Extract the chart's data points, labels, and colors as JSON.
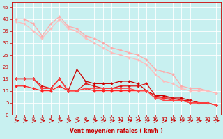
{
  "xlabel": "Vent moyen/en rafales ( km/h )",
  "x": [
    0,
    1,
    2,
    3,
    4,
    5,
    6,
    7,
    8,
    9,
    10,
    11,
    12,
    13,
    14,
    15,
    16,
    17,
    18,
    19,
    20,
    21,
    22,
    23
  ],
  "ylim": [
    0,
    47
  ],
  "xlim": [
    -0.5,
    23.5
  ],
  "yticks": [
    0,
    5,
    10,
    15,
    20,
    25,
    30,
    35,
    40,
    45
  ],
  "xticks": [
    0,
    1,
    2,
    3,
    4,
    5,
    6,
    7,
    8,
    9,
    10,
    11,
    12,
    13,
    14,
    15,
    16,
    17,
    18,
    19,
    20,
    21,
    22,
    23
  ],
  "background_color": "#c8f0f0",
  "grid_color": "#b0dede",
  "series": [
    {
      "values": [
        40,
        40,
        38,
        33,
        38,
        41,
        37,
        36,
        33,
        32,
        30,
        28,
        27,
        26,
        25,
        23,
        19,
        18,
        17,
        12,
        11,
        11,
        10,
        9
      ],
      "color": "#ffaaaa",
      "marker": "D",
      "marker_size": 2,
      "linewidth": 0.9,
      "zorder": 2
    },
    {
      "values": [
        39,
        38,
        35,
        32,
        36,
        40,
        36,
        35,
        32,
        30,
        28,
        26,
        25,
        24,
        23,
        21,
        17,
        14,
        13,
        11,
        10,
        10,
        10,
        9
      ],
      "color": "#ffbbbb",
      "marker": "D",
      "marker_size": 2,
      "linewidth": 0.9,
      "zorder": 2
    },
    {
      "values": [
        15,
        15,
        15,
        11,
        11,
        15,
        10,
        19,
        14,
        13,
        13,
        13,
        14,
        14,
        13,
        10,
        8,
        8,
        7,
        7,
        6,
        5,
        5,
        4
      ],
      "color": "#cc0000",
      "marker": "D",
      "marker_size": 2,
      "linewidth": 0.9,
      "zorder": 3
    },
    {
      "values": [
        15,
        15,
        15,
        12,
        11,
        15,
        10,
        10,
        13,
        12,
        11,
        11,
        12,
        12,
        12,
        13,
        8,
        7,
        7,
        6,
        6,
        5,
        5,
        4
      ],
      "color": "#dd1111",
      "marker": "D",
      "marker_size": 2,
      "linewidth": 0.9,
      "zorder": 3
    },
    {
      "values": [
        12,
        12,
        11,
        10,
        10,
        12,
        10,
        10,
        11,
        10,
        10,
        10,
        10,
        10,
        10,
        10,
        7,
        7,
        6,
        6,
        5,
        5,
        5,
        4
      ],
      "color": "#ff2222",
      "marker": "D",
      "marker_size": 2,
      "linewidth": 0.9,
      "zorder": 3
    },
    {
      "values": [
        15,
        15,
        15,
        11,
        11,
        15,
        10,
        10,
        11,
        11,
        11,
        11,
        11,
        11,
        10,
        10,
        7,
        6,
        6,
        6,
        5,
        5,
        5,
        4
      ],
      "color": "#ff4444",
      "marker": "D",
      "marker_size": 2,
      "linewidth": 0.9,
      "zorder": 3
    }
  ],
  "label_fontsize": 5.5,
  "tick_fontsize": 5.0,
  "axis_color": "#cc0000",
  "tick_color": "#cc0000",
  "xlabel_color": "#cc0000",
  "arrow_color": "#cc0000"
}
